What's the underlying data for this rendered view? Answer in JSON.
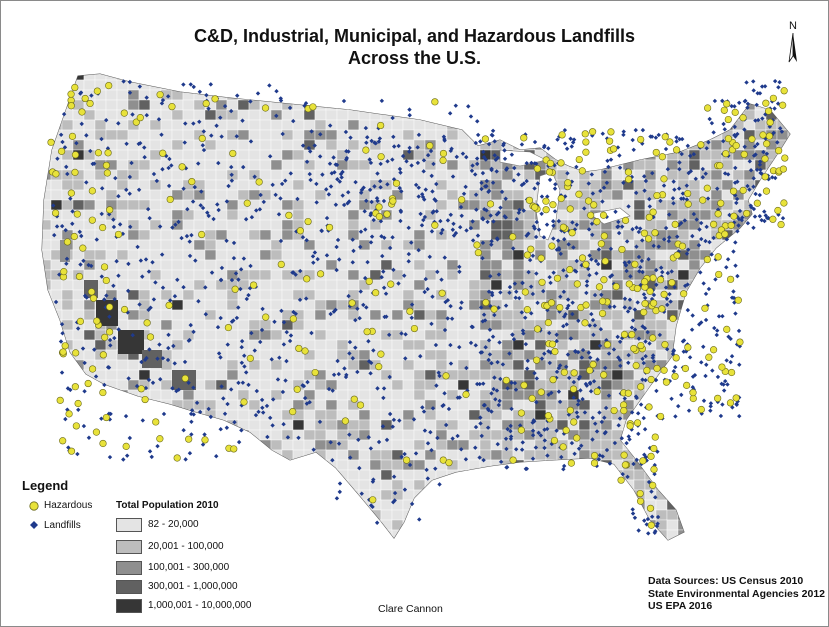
{
  "title": {
    "line1": "C&D, Industrial, Municipal, and Hazardous Landfills",
    "line2": "Across the U.S."
  },
  "north_arrow": {
    "label": "N"
  },
  "legend": {
    "title": "Legend",
    "symbols": [
      {
        "label": "Hazardous",
        "color": "#e8e23a",
        "shape": "circle"
      },
      {
        "label": "Landfills",
        "color": "#1f3a8c",
        "shape": "diamond"
      }
    ],
    "population": {
      "title": "Total Population 2010",
      "classes": [
        {
          "label": "82 - 20,000",
          "color": "#e4e4e4"
        },
        {
          "label": "20,001 - 100,000",
          "color": "#bdbdbd"
        },
        {
          "label": "100,001 - 300,000",
          "color": "#8f8f8f"
        },
        {
          "label": "300,001 - 1,000,000",
          "color": "#616161"
        },
        {
          "label": "1,000,001 - 10,000,000",
          "color": "#363636"
        }
      ]
    }
  },
  "sources": [
    "Data Sources: US Census 2010",
    "State Environmental Agencies 2012",
    "US EPA 2016"
  ],
  "author": "Clare Cannon"
}
